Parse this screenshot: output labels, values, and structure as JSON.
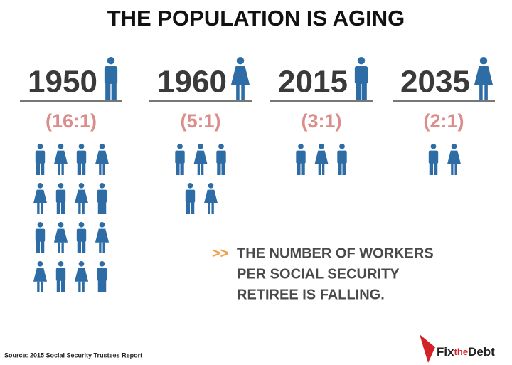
{
  "title": "THE POPULATION IS AGING",
  "columns": [
    {
      "year": "1950",
      "ratio": "(16:1)",
      "workers": 16
    },
    {
      "year": "1960",
      "ratio": "(5:1)",
      "workers": 5
    },
    {
      "year": "2015",
      "ratio": "(3:1)",
      "workers": 3
    },
    {
      "year": "2035",
      "ratio": "(2:1)",
      "workers": 2
    }
  ],
  "note": {
    "marker": ">>",
    "lines": [
      "THE NUMBER OF WORKERS",
      "PER SOCIAL SECURITY",
      "RETIREE IS FALLING."
    ]
  },
  "source": "Source: 2015 Social Security Trustees Report",
  "logo": {
    "fix": "Fix",
    "the": "the",
    "debt": "Debt"
  }
}
